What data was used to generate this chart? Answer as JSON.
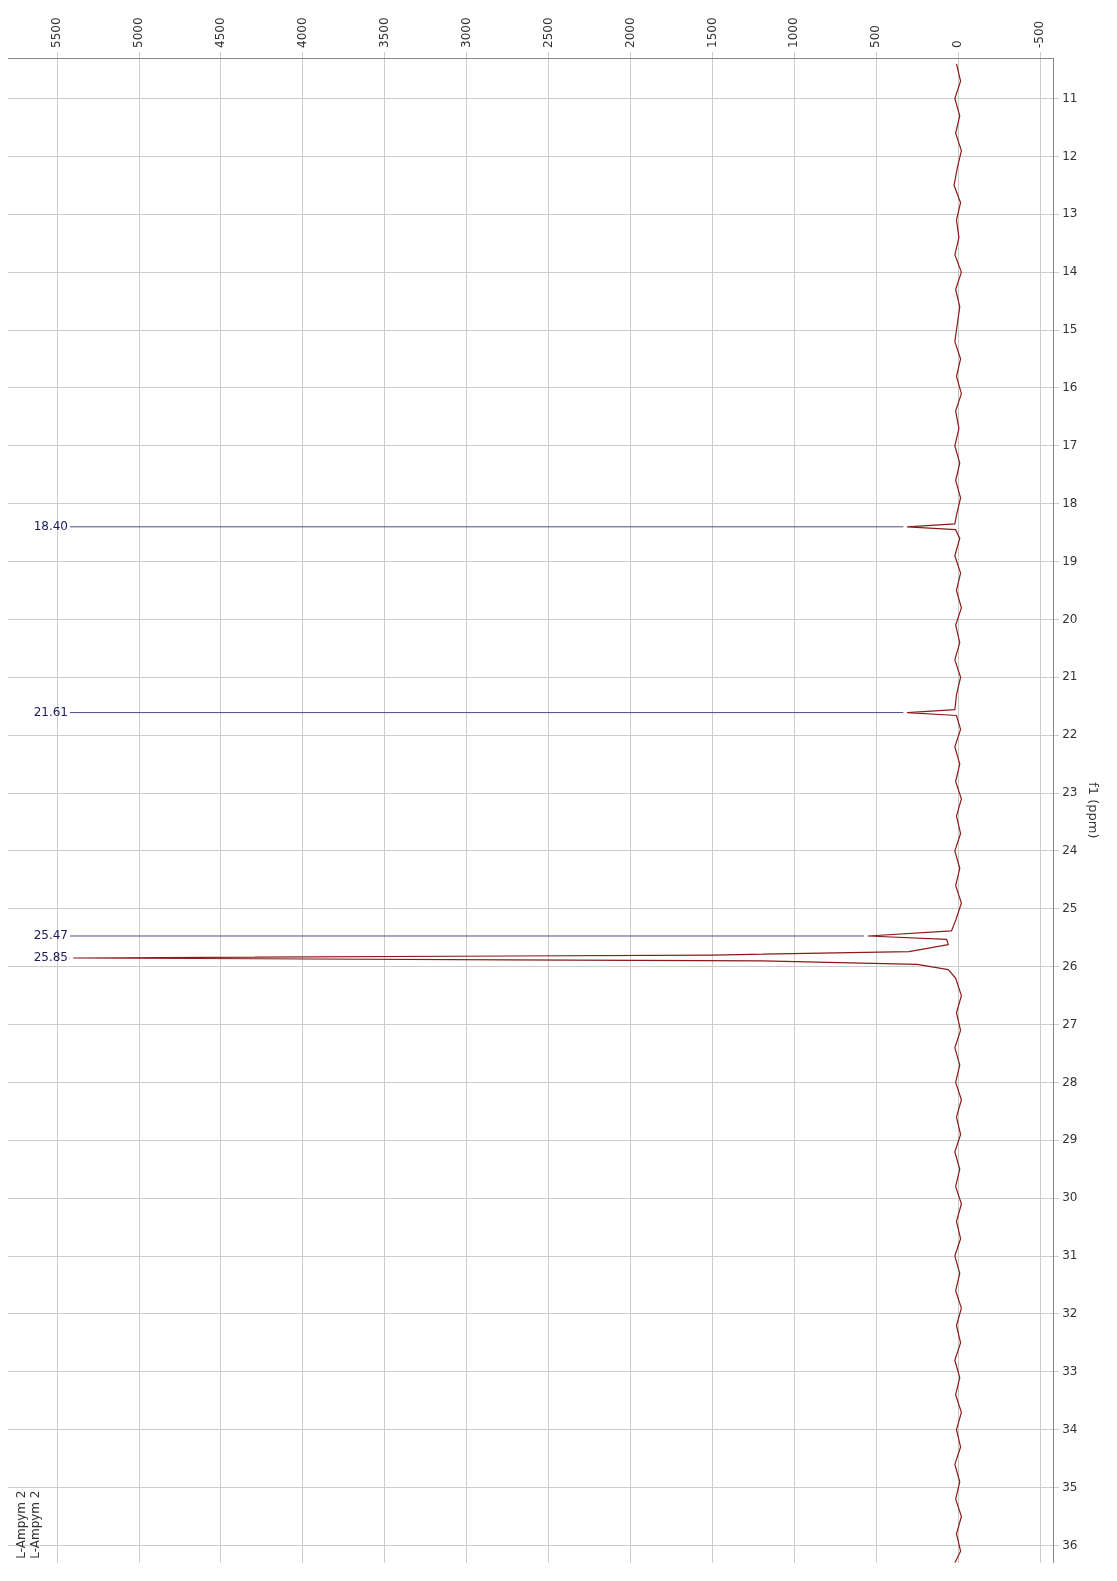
{
  "chart_data": {
    "type": "line",
    "orientation": "horizontal",
    "ylabel": "f1 (ppm)",
    "color": "#8b1a1a",
    "grid": true,
    "marker": "none",
    "x": [
      10.4,
      10.7,
      11.0,
      11.3,
      11.6,
      11.9,
      12.2,
      12.5,
      12.8,
      13.1,
      13.4,
      13.7,
      14.0,
      14.3,
      14.6,
      14.9,
      15.2,
      15.5,
      15.8,
      16.1,
      16.4,
      16.7,
      17.0,
      17.3,
      17.6,
      17.9,
      18.2,
      18.35,
      18.4,
      18.45,
      18.6,
      18.9,
      19.2,
      19.5,
      19.8,
      20.1,
      20.4,
      20.7,
      21.0,
      21.3,
      21.56,
      21.61,
      21.66,
      21.9,
      22.2,
      22.5,
      22.8,
      23.1,
      23.4,
      23.7,
      24.0,
      24.3,
      24.6,
      24.9,
      25.2,
      25.38,
      25.47,
      25.53,
      25.62,
      25.74,
      25.8,
      25.85,
      25.9,
      25.96,
      26.05,
      26.2,
      26.5,
      26.8,
      27.1,
      27.4,
      27.7,
      28.0,
      28.3,
      28.6,
      28.9,
      29.2,
      29.5,
      29.8,
      30.1,
      30.4,
      30.7,
      31.0,
      31.3,
      31.6,
      31.9,
      32.2,
      32.5,
      32.8,
      33.1,
      33.4,
      33.7,
      34.0,
      34.3,
      34.6,
      34.9,
      35.2,
      35.5,
      35.8,
      36.1,
      36.3
    ],
    "values": [
      10,
      -15,
      20,
      -10,
      15,
      -20,
      5,
      25,
      -15,
      10,
      -5,
      20,
      -20,
      15,
      -10,
      5,
      20,
      -15,
      10,
      -20,
      15,
      -5,
      20,
      -10,
      15,
      -15,
      10,
      20,
      310,
      15,
      -10,
      20,
      -15,
      10,
      -20,
      15,
      -10,
      20,
      -15,
      10,
      20,
      310,
      10,
      -15,
      20,
      -10,
      15,
      -20,
      10,
      -15,
      20,
      -10,
      15,
      -20,
      15,
      40,
      550,
      70,
      60,
      300,
      1500,
      5400,
      1200,
      250,
      60,
      15,
      -20,
      10,
      -15,
      20,
      -10,
      15,
      -20,
      10,
      -15,
      20,
      -10,
      15,
      -20,
      10,
      -15,
      20,
      -10,
      15,
      -20,
      10,
      -15,
      20,
      -10,
      15,
      -20,
      10,
      -15,
      20,
      -10,
      15,
      -20,
      10,
      -15,
      20
    ],
    "ylim": [
      36.3,
      10.3
    ],
    "yticks": [
      11,
      12,
      13,
      14,
      15,
      16,
      17,
      18,
      19,
      20,
      21,
      22,
      23,
      24,
      25,
      26,
      27,
      28,
      29,
      30,
      31,
      32,
      33,
      34,
      35,
      36
    ],
    "xlim": [
      5800,
      -580
    ],
    "xticks": [
      5500,
      5000,
      4500,
      4000,
      3500,
      3000,
      2500,
      2000,
      1500,
      1000,
      500,
      0,
      -500
    ],
    "annotations": [
      {
        "text": "18.40",
        "x": 310,
        "y": 18.4
      },
      {
        "text": "21.61",
        "x": 310,
        "y": 21.61
      },
      {
        "text": "25.47",
        "x": 550,
        "y": 25.47
      },
      {
        "text": "25.85",
        "x": 5400,
        "y": 25.85
      },
      "L-Ampym 2",
      "L-Ampym 2"
    ]
  }
}
